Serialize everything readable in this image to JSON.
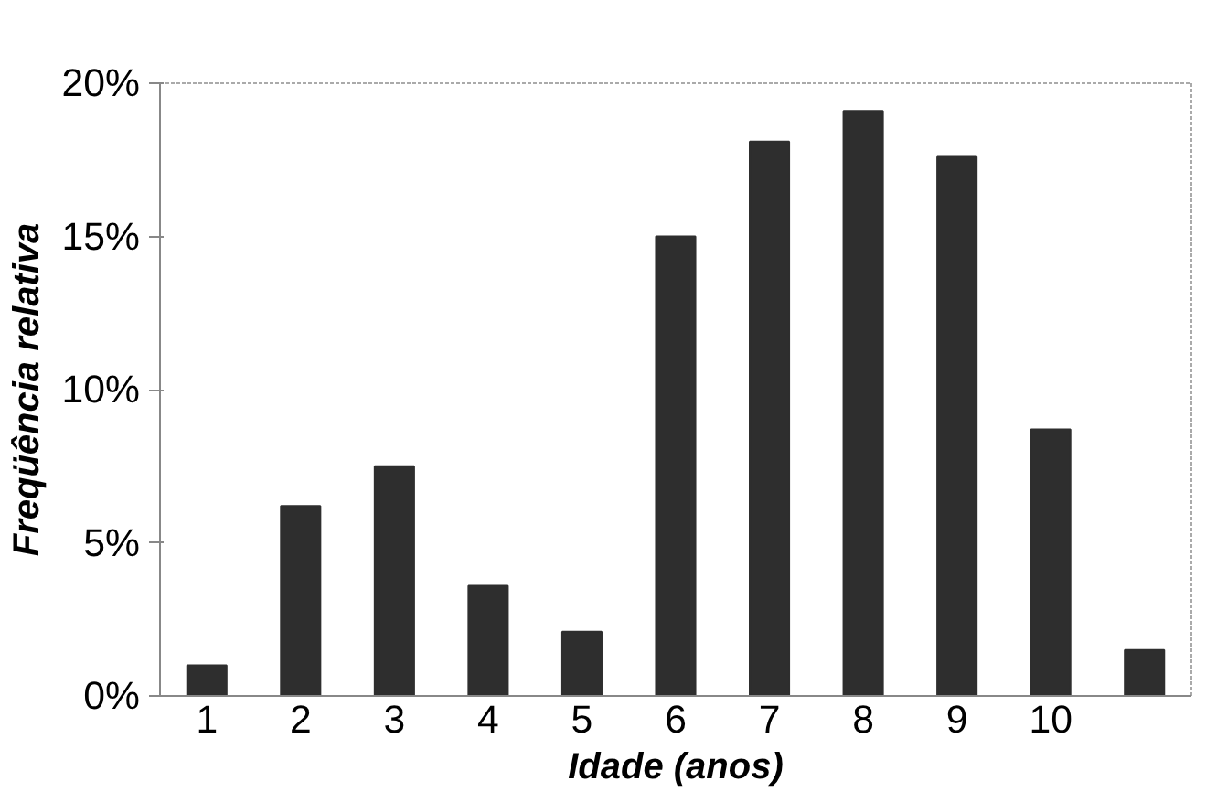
{
  "chart_data": {
    "type": "bar",
    "xlabel": "Idade (anos)",
    "ylabel": "Freqüência relativa",
    "categories": [
      "1",
      "2",
      "3",
      "4",
      "5",
      "6",
      "7",
      "8",
      "9",
      "10",
      null
    ],
    "values": [
      1.0,
      6.2,
      7.5,
      3.6,
      2.1,
      15.0,
      18.1,
      19.1,
      17.6,
      8.7,
      1.5
    ],
    "color": "#2e2e2e",
    "ylim": [
      0,
      20
    ],
    "yticks": [
      {
        "value": 0,
        "label": "0%"
      },
      {
        "value": 5,
        "label": "5%"
      },
      {
        "value": 10,
        "label": "10%"
      },
      {
        "value": 15,
        "label": "15%"
      },
      {
        "value": 20,
        "label": "20%"
      }
    ],
    "grid": false
  }
}
